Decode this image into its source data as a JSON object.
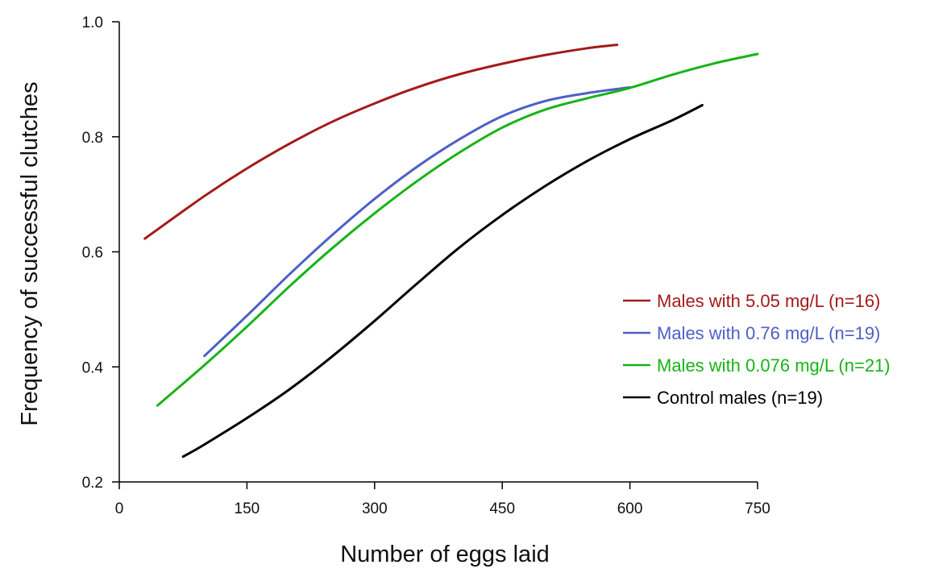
{
  "chart_data": {
    "type": "line",
    "title": "",
    "xlabel": "Number of eggs laid",
    "ylabel": "Frequency of successful clutches",
    "xlim": [
      0,
      750
    ],
    "ylim": [
      0.2,
      1.0
    ],
    "xticks": [
      0,
      150,
      300,
      450,
      600,
      750
    ],
    "yticks": [
      0.2,
      0.4,
      0.6,
      0.8,
      1.0
    ],
    "xtick_labels": [
      "0",
      "150",
      "300",
      "450",
      "600",
      "750"
    ],
    "ytick_labels": [
      "0.2",
      "0.4",
      "0.6",
      "0.8",
      "1.0"
    ],
    "grid": false,
    "legend_position": "right",
    "series": [
      {
        "name": "Males with 5.05 mg/L (n=16)",
        "color": "#a31a1a",
        "x": [
          30,
          100,
          150,
          200,
          250,
          300,
          350,
          400,
          450,
          500,
          550,
          585
        ],
        "y": [
          0.623,
          0.697,
          0.745,
          0.788,
          0.826,
          0.858,
          0.886,
          0.909,
          0.927,
          0.942,
          0.954,
          0.96
        ]
      },
      {
        "name": "Males with 0.76 mg/L (n=19)",
        "color": "#4e5fc6",
        "x": [
          100,
          150,
          200,
          250,
          300,
          350,
          400,
          450,
          500,
          550,
          600
        ],
        "y": [
          0.419,
          0.489,
          0.561,
          0.629,
          0.692,
          0.748,
          0.796,
          0.836,
          0.862,
          0.876,
          0.886
        ]
      },
      {
        "name": "Males with 0.076 mg/L (n=21)",
        "color": "#17b317",
        "x": [
          45,
          100,
          150,
          200,
          250,
          300,
          350,
          400,
          450,
          500,
          550,
          600,
          650,
          700,
          750
        ],
        "y": [
          0.333,
          0.403,
          0.47,
          0.54,
          0.606,
          0.667,
          0.723,
          0.773,
          0.816,
          0.847,
          0.867,
          0.885,
          0.908,
          0.928,
          0.944
        ]
      },
      {
        "name": "Control males (n=19)",
        "color": "#000000",
        "x": [
          75,
          100,
          150,
          200,
          250,
          300,
          350,
          400,
          450,
          500,
          550,
          600,
          650,
          685
        ],
        "y": [
          0.244,
          0.265,
          0.311,
          0.361,
          0.418,
          0.48,
          0.545,
          0.608,
          0.664,
          0.714,
          0.758,
          0.796,
          0.829,
          0.855
        ]
      }
    ]
  }
}
